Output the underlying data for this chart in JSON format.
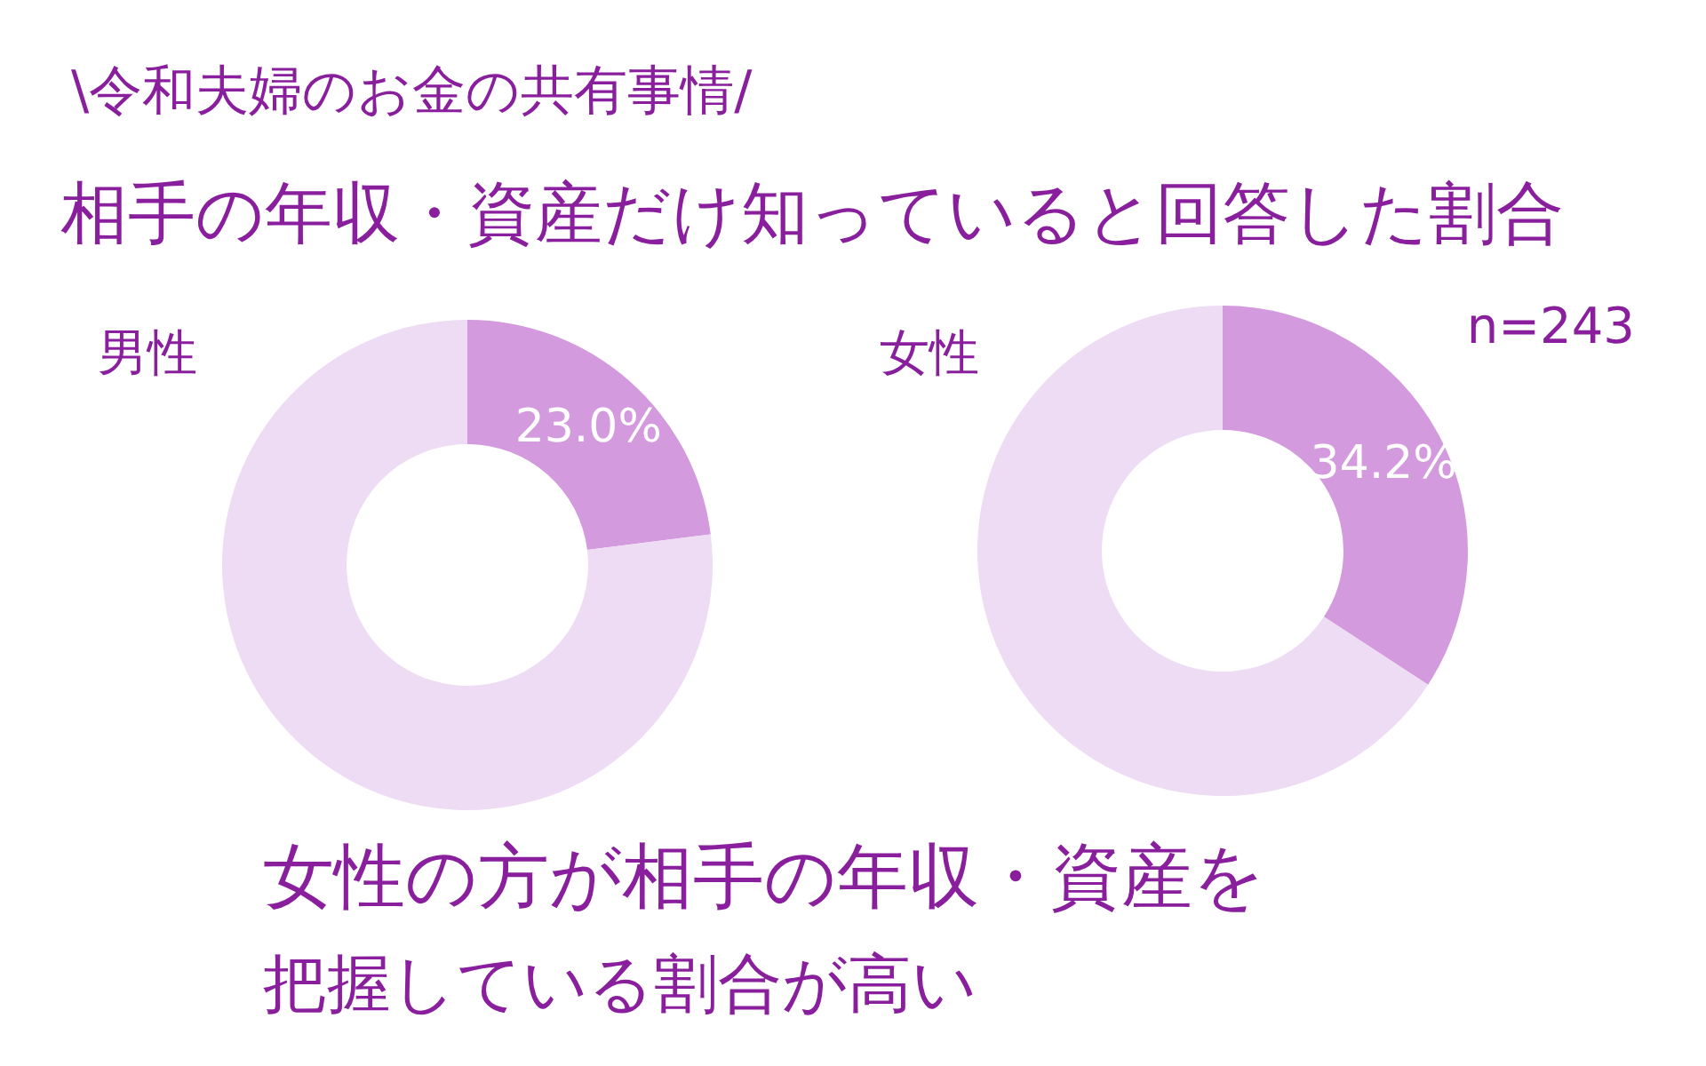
{
  "chart_data": [
    {
      "type": "donut",
      "title": "男性",
      "categories": [
        null,
        null
      ],
      "values": [
        23.0,
        77.0
      ],
      "colors": [
        "#d49ade",
        "#eddcf3"
      ],
      "value_labels": [
        "23.0%",
        null
      ],
      "annotations": [
        "\\令和夫婦のお金の共有事情/",
        "相手の年収・資産だけ知っていると回答した割合",
        "女性の方が相手の年収・資産を",
        "把握している割合が高い"
      ]
    },
    {
      "type": "donut",
      "title": "女性",
      "categories": [
        null,
        null
      ],
      "values": [
        34.2,
        65.8
      ],
      "colors": [
        "#d49ade",
        "#eddcf3"
      ],
      "value_labels": [
        "34.2%",
        null
      ],
      "annotations": [
        "n=243"
      ]
    }
  ]
}
